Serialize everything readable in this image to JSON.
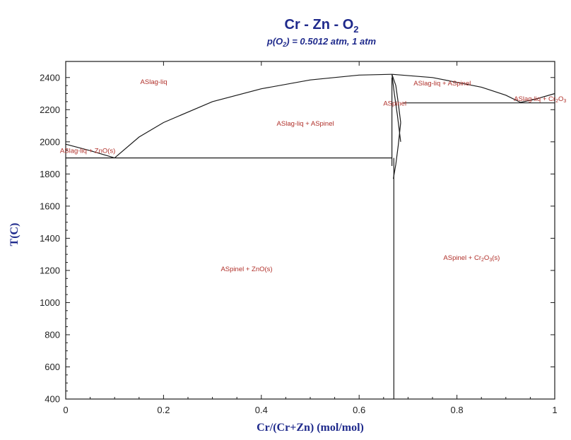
{
  "chart_data": {
    "type": "line",
    "title": {
      "main": "Cr - Zn - O",
      "main_sub": "2"
    },
    "subtitle": {
      "pre": "p(O",
      "sub": "2",
      "post": ") = 0.5012 atm,  1 atm"
    },
    "xlabel": "Cr/(Cr+Zn) (mol/mol)",
    "ylabel": "T(C)",
    "xlim": [
      0,
      1
    ],
    "ylim": [
      400,
      2500
    ],
    "xticks": [
      0,
      0.2,
      0.4,
      0.6,
      0.8,
      1
    ],
    "xtick_labels": [
      "0",
      "0.2",
      "0.4",
      "0.6",
      "0.8",
      "1"
    ],
    "yticks": [
      400,
      600,
      800,
      1000,
      1200,
      1400,
      1600,
      1800,
      2000,
      2200,
      2400
    ],
    "ytick_labels": [
      "400",
      "600",
      "800",
      "1000",
      "1200",
      "1400",
      "1600",
      "1800",
      "2000",
      "2200",
      "2400"
    ],
    "grid": false,
    "boundaries": [
      {
        "name": "",
        "x": [
          0,
          0.05,
          0.1
        ],
        "y": [
          1985,
          1945,
          1900
        ]
      },
      {
        "name": "",
        "x": [
          0.1,
          0.15,
          0.2,
          0.3,
          0.4,
          0.5,
          0.6,
          0.667
        ],
        "y": [
          1900,
          2030,
          2120,
          2250,
          2330,
          2385,
          2415,
          2420
        ]
      },
      {
        "name": "",
        "x": [
          0.667,
          0.675,
          0.68,
          0.685
        ],
        "y": [
          2420,
          2350,
          2240,
          2120
        ]
      },
      {
        "name": "",
        "x": [
          0.667,
          0.672,
          0.678,
          0.685
        ],
        "y": [
          2420,
          2300,
          2170,
          2000
        ]
      },
      {
        "name": "",
        "x": [
          0.685,
          0.68,
          0.675,
          0.67
        ],
        "y": [
          2120,
          1980,
          1860,
          1770
        ]
      },
      {
        "name": "",
        "x": [
          0.667,
          0.667
        ],
        "y": [
          2400,
          1850
        ]
      },
      {
        "name": "",
        "x": [
          0.671,
          0.671
        ],
        "y": [
          1900,
          400
        ]
      },
      {
        "name": "",
        "x": [
          0.667,
          0.75,
          0.85,
          0.9,
          0.93,
          0.96,
          1.0
        ],
        "y": [
          2420,
          2400,
          2340,
          2290,
          2245,
          2265,
          2300
        ]
      },
      {
        "name": "",
        "x": [
          0,
          0.667
        ],
        "y": [
          1900,
          1900
        ]
      },
      {
        "name": "",
        "x": [
          0.69,
          1.0
        ],
        "y": [
          2242,
          2242
        ]
      }
    ],
    "regions": [
      {
        "label": "ASlag-liq",
        "x": 0.18,
        "y": 2360
      },
      {
        "label": "ASlag-liq + ASpinel",
        "x": 0.49,
        "y": 2100
      },
      {
        "label": "ASlag-liq + ZnO(s)",
        "x": 0.045,
        "y": 1930
      },
      {
        "label": "ASlag-liq + ASpinel",
        "x": 0.77,
        "y": 2350
      },
      {
        "label": "ASpinel",
        "x": 0.673,
        "y": 2225
      },
      {
        "label": "ASpinel + ZnO(s)",
        "x": 0.37,
        "y": 1195
      },
      {
        "label": "ASpinel + Cr",
        "sub": "2",
        "label2": "O",
        "sub2": "3",
        "label3": "(s)",
        "x": 0.83,
        "y": 1265
      },
      {
        "label": "ASlag-liq + Cr",
        "sub": "2",
        "label2": "O",
        "sub2": "3",
        "label3": "",
        "x": 0.97,
        "y": 2255
      }
    ]
  }
}
